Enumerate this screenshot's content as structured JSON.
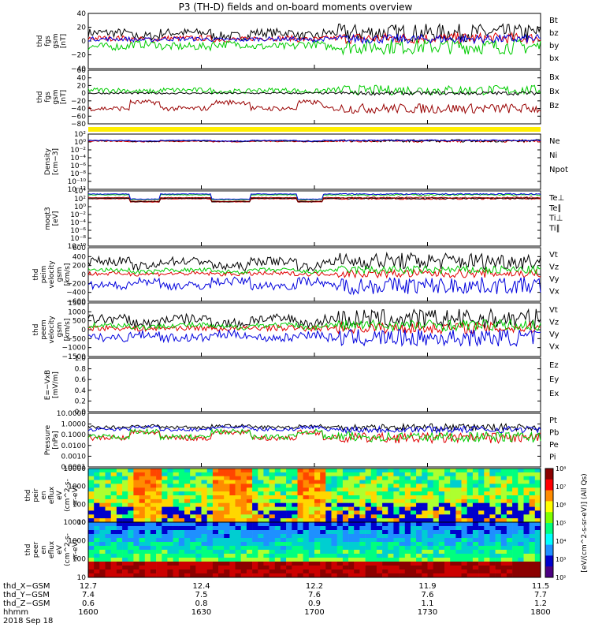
{
  "title": "P3 (TH-D) fields and on-board moments overview",
  "colors": {
    "black": "#000000",
    "red": "#e00000",
    "green": "#00cc00",
    "blue": "#0000dd",
    "darkred": "#990000",
    "yellow": "#ffee00"
  },
  "chart_data": [
    {
      "type": "line",
      "ylabel": [
        "thd",
        "fgs",
        "gsm",
        "[nT]"
      ],
      "ylim": [
        -40,
        40
      ],
      "yticks": [
        "40",
        "20",
        "0",
        "−20",
        "−40"
      ],
      "series": [
        {
          "name": "Bt",
          "color": "#000000",
          "level": 12,
          "amp": 8
        },
        {
          "name": "bz",
          "color": "#e00000",
          "level": 4,
          "amp": 5
        },
        {
          "name": "by",
          "color": "#00cc00",
          "level": -8,
          "amp": 7
        },
        {
          "name": "bx",
          "color": "#0000dd",
          "level": 3,
          "amp": 4
        }
      ]
    },
    {
      "type": "line",
      "ylabel": [
        "thd",
        "fgs",
        "gsm",
        "[nT]"
      ],
      "ylim": [
        -80,
        60
      ],
      "yticks": [
        "60",
        "40",
        "20",
        "0",
        "−20",
        "−40",
        "−60",
        "−80"
      ],
      "series": [
        {
          "name": "Bx",
          "color": "#00cc00",
          "level": 8,
          "amp": 8
        },
        {
          "name": "Bx",
          "color": "#000000",
          "level": 0,
          "amp": 3
        },
        {
          "name": "Bz",
          "color": "#990000",
          "level": -40,
          "amp": 8
        }
      ]
    },
    {
      "type": "line",
      "ylabel": [
        "Density",
        "[cm−3]"
      ],
      "ylim_log": [
        -12,
        2
      ],
      "yticks": [
        "10²",
        "10⁰",
        "10⁻²",
        "10⁻⁴",
        "10⁻⁶",
        "10⁻⁸",
        "10⁻¹⁰",
        "10⁻¹²"
      ],
      "series": [
        {
          "name": "Ne",
          "color": "#e00000",
          "level": 0.2,
          "amp": 0.2
        },
        {
          "name": "Ni",
          "color": "#000000",
          "level": 0.3,
          "amp": 0.2
        },
        {
          "name": "Npot",
          "color": "#0000dd",
          "level": 0.4,
          "amp": 0.1
        }
      ]
    },
    {
      "type": "line",
      "ylabel": [
        "moqt3",
        "[eV]"
      ],
      "ylim_log": [
        -10,
        4
      ],
      "yticks": [
        "10⁴",
        "10²",
        "10⁰",
        "10⁻²",
        "10⁻⁴",
        "10⁻⁶",
        "10⁻⁸",
        "10⁻¹⁰"
      ],
      "series": [
        {
          "name": "Te⊥",
          "color": "#e00000",
          "level": 2.0,
          "amp": 0.1
        },
        {
          "name": "Te∥",
          "color": "#000000",
          "level": 2.1,
          "amp": 0.1
        },
        {
          "name": "Ti⊥",
          "color": "#990000",
          "level": 2.3,
          "amp": 0.1
        },
        {
          "name": "Ti∥",
          "color": "#00cc00",
          "level": 3.0,
          "amp": 0.1
        },
        {
          "name": "",
          "color": "#0000dd",
          "level": 3.2,
          "amp": 0.1
        }
      ]
    },
    {
      "type": "line",
      "ylabel": [
        "thd",
        "peim",
        "velocity",
        "gsm",
        "[km/s]"
      ],
      "ylim": [
        -600,
        600
      ],
      "yticks": [
        "600",
        "400",
        "200",
        "0",
        "−200",
        "−400",
        "−600"
      ],
      "series": [
        {
          "name": "Vt",
          "color": "#000000",
          "level": 300,
          "amp": 120
        },
        {
          "name": "Vz",
          "color": "#e00000",
          "level": 20,
          "amp": 60
        },
        {
          "name": "Vy",
          "color": "#00cc00",
          "level": 100,
          "amp": 60
        },
        {
          "name": "Vx",
          "color": "#0000dd",
          "level": -250,
          "amp": 120
        }
      ]
    },
    {
      "type": "line",
      "ylabel": [
        "thd",
        "peem",
        "velocity",
        "gsm",
        "[km/s]"
      ],
      "ylim": [
        -1500,
        1500
      ],
      "yticks": [
        "1500",
        "1000",
        "500",
        "0",
        "−500",
        "−1000",
        "−1500"
      ],
      "series": [
        {
          "name": "Vt",
          "color": "#000000",
          "level": 600,
          "amp": 350
        },
        {
          "name": "Vz",
          "color": "#e00000",
          "level": 100,
          "amp": 200
        },
        {
          "name": "Vy",
          "color": "#00cc00",
          "level": 250,
          "amp": 200
        },
        {
          "name": "Vx",
          "color": "#0000dd",
          "level": -450,
          "amp": 300
        }
      ]
    },
    {
      "type": "line",
      "ylabel": [
        "E=−VxB",
        "[mV/m]"
      ],
      "ylim": [
        0,
        1.0
      ],
      "yticks": [
        "1.0",
        "0.8",
        "0.6",
        "0.4",
        "0.2",
        "0.0"
      ],
      "series": [
        {
          "name": "Ez",
          "color": "#e00000"
        },
        {
          "name": "Ey",
          "color": "#00cc00"
        },
        {
          "name": "Ex",
          "color": "#0000dd"
        }
      ]
    },
    {
      "type": "line",
      "ylabel": [
        "Pressure",
        "[nPa]"
      ],
      "ylim_log": [
        -4,
        1
      ],
      "yticks": [
        "10.0000",
        "1.0000",
        "0.1000",
        "0.0100",
        "0.0010",
        "0.0001"
      ],
      "series": [
        {
          "name": "Pt",
          "color": "#000000",
          "level": -0.3,
          "amp": 0.2
        },
        {
          "name": "Pb",
          "color": "#e00000",
          "level": -1.3,
          "amp": 0.3
        },
        {
          "name": "Pe",
          "color": "#00cc00",
          "level": -1.2,
          "amp": 0.3
        },
        {
          "name": "Pi",
          "color": "#0000dd",
          "level": -0.5,
          "amp": 0.2
        }
      ]
    },
    {
      "type": "heatmap",
      "ylabel": [
        "thd",
        "peir",
        "en",
        "eflux",
        "eV",
        "(cm^2-s-",
        "sr-eV)"
      ],
      "yticks": [
        "10000",
        "1000",
        "100",
        "10"
      ]
    },
    {
      "type": "heatmap",
      "ylabel": [
        "thd",
        "peer",
        "en",
        "eflux",
        "eV",
        "(cm^2-s-",
        "sr-eV)"
      ],
      "yticks": [
        "10000",
        "1000",
        "100",
        "10"
      ]
    }
  ],
  "colorbar": {
    "label": "[eV/(cm^2-s-sr-eV)] (All Qs)",
    "ticks": [
      "10⁸",
      "10⁷",
      "10⁶",
      "10⁵",
      "10⁴",
      "10³",
      "10²"
    ]
  },
  "x_axis": {
    "rows": [
      {
        "label": "thd_X−GSM",
        "values": [
          "12.7",
          "12.4",
          "12.2",
          "11.9",
          "11.5"
        ]
      },
      {
        "label": "thd_Y−GSM",
        "values": [
          "7.4",
          "7.5",
          "7.6",
          "7.6",
          "7.7"
        ]
      },
      {
        "label": "thd_Z−GSM",
        "values": [
          "0.6",
          "0.8",
          "0.9",
          "1.1",
          "1.2"
        ]
      },
      {
        "label": "hhmm",
        "values": [
          "1600",
          "1630",
          "1700",
          "1730",
          "1800"
        ]
      }
    ],
    "date": "2018 Sep 18"
  }
}
